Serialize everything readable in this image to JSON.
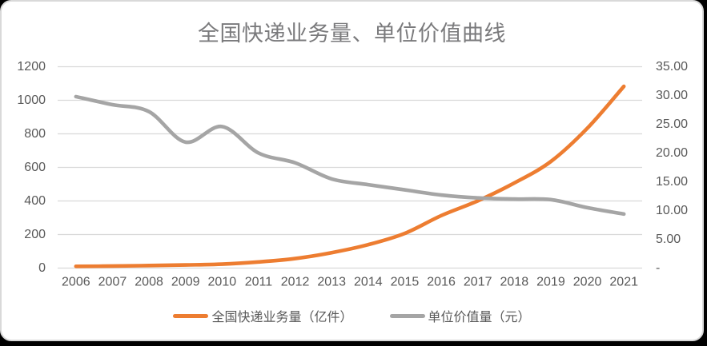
{
  "chart_data": {
    "type": "line",
    "title": "全国快递业务量、单位价值曲线",
    "categories": [
      "2006",
      "2007",
      "2008",
      "2009",
      "2010",
      "2011",
      "2012",
      "2013",
      "2014",
      "2015",
      "2016",
      "2017",
      "2018",
      "2019",
      "2020",
      "2021"
    ],
    "series": [
      {
        "name": "全国快递业务量（亿件）",
        "axis": "left",
        "color": "#ED7D31",
        "values": [
          10.6,
          12.0,
          15.1,
          18.6,
          23.4,
          36.7,
          56.9,
          91.9,
          139.6,
          206.7,
          312.8,
          400.6,
          507.1,
          635.2,
          833.6,
          1083.0
        ]
      },
      {
        "name": "单位价值量（元）",
        "axis": "right",
        "color": "#A5A5A5",
        "values": [
          29.8,
          28.4,
          27.2,
          21.9,
          24.6,
          20.0,
          18.3,
          15.5,
          14.5,
          13.6,
          12.7,
          12.2,
          12.0,
          11.9,
          10.5,
          9.4
        ]
      }
    ],
    "left_axis": {
      "min": 0,
      "max": 1200,
      "step": 200,
      "tick_labels": [
        "1200",
        "1000",
        "800",
        "600",
        "400",
        "200",
        "0"
      ]
    },
    "right_axis": {
      "min": 0,
      "max": 35,
      "step": 5,
      "tick_labels": [
        "35.00",
        "30.00",
        "25.00",
        "20.00",
        "15.00",
        "10.00",
        "5.00",
        "-"
      ]
    },
    "grid": true,
    "smoothed_lines": true,
    "legend_position": "bottom",
    "colors": {
      "gridline": "#D9D9D9",
      "tick_text": "#595959",
      "title_text": "#7A7A7C",
      "background": "#FFFFFF"
    }
  }
}
